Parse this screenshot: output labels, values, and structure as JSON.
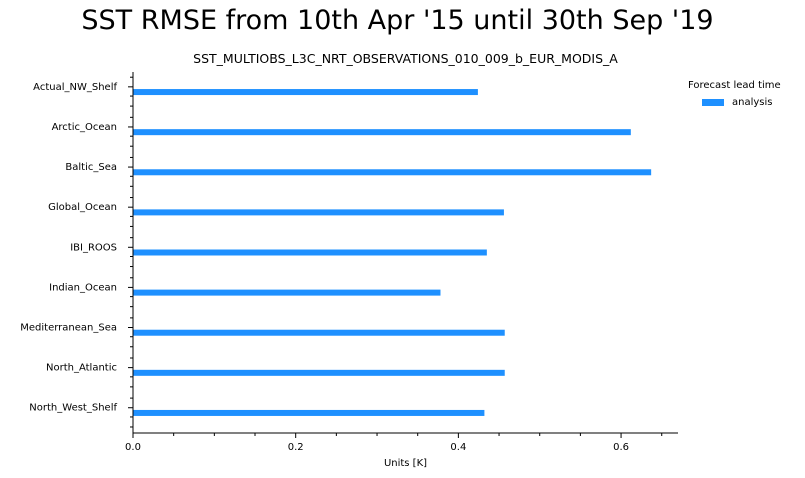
{
  "chart_data": {
    "type": "bar",
    "orientation": "horizontal",
    "title": "SST RMSE from 10th Apr '15 until 30th Sep '19",
    "subtitle": "SST_MULTIOBS_L3C_NRT_OBSERVATIONS_010_009_b_EUR_MODIS_A",
    "xlabel": "Units [K]",
    "ylabel": "",
    "xlim": [
      0,
      0.67
    ],
    "xticks": [
      "0.0",
      "0.2",
      "0.4",
      "0.6"
    ],
    "grid": false,
    "legend_position": "right",
    "legend_title": "Forecast lead time",
    "categories": [
      "Actual_NW_Shelf",
      "Arctic_Ocean",
      "Baltic_Sea",
      "Global_Ocean",
      "IBI_ROOS",
      "Indian_Ocean",
      "Mediterranean_Sea",
      "North_Atlantic",
      "North_West_Shelf"
    ],
    "series": [
      {
        "name": "analysis",
        "color": "#1e90ff",
        "values": [
          0.424,
          0.612,
          0.637,
          0.456,
          0.435,
          0.378,
          0.457,
          0.457,
          0.432
        ]
      }
    ]
  }
}
